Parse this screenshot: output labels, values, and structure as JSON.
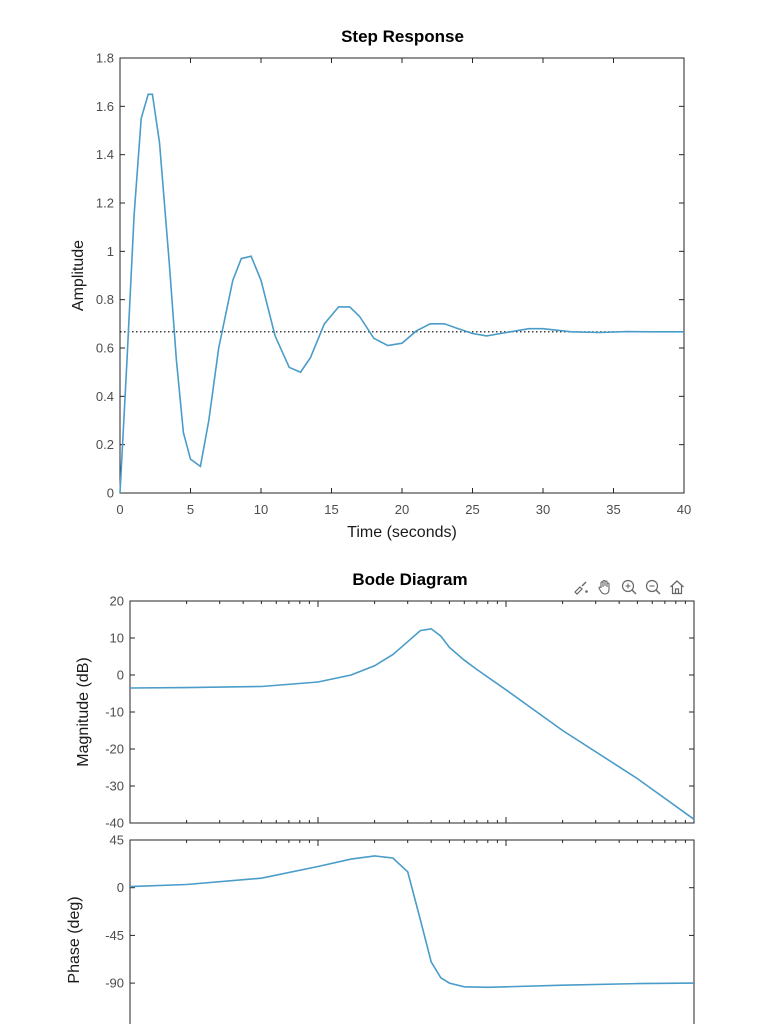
{
  "colors": {
    "line": "#4a9cc9",
    "axis": "#262626",
    "reference": "#000000"
  },
  "toolbar": {
    "icons": [
      "brush-icon",
      "pan-hand-icon",
      "zoom-in-icon",
      "zoom-out-icon",
      "home-icon"
    ]
  },
  "chart_data": [
    {
      "type": "line",
      "title": "Step Response",
      "xlabel": "Time (seconds)",
      "ylabel": "Amplitude",
      "xlim": [
        0,
        40
      ],
      "ylim": [
        0,
        1.8
      ],
      "xticks": [
        "0",
        "5",
        "10",
        "15",
        "20",
        "25",
        "30",
        "35",
        "40"
      ],
      "yticks": [
        "0",
        "0.2",
        "0.4",
        "0.6",
        "0.8",
        "1",
        "1.2",
        "1.4",
        "1.6",
        "1.8"
      ],
      "grid": false,
      "steady_state": 0.667,
      "series": [
        {
          "x": [
            0,
            0.5,
            1,
            1.5,
            2,
            2.3,
            2.8,
            3.5,
            4,
            4.5,
            5,
            5.7,
            6.3,
            7,
            8,
            8.6,
            9.3,
            10,
            11,
            12,
            12.8,
            13.5,
            14.5,
            15.5,
            16.3,
            17,
            18,
            19,
            20,
            21,
            22,
            23,
            24,
            25,
            26,
            27,
            28,
            29,
            30,
            32,
            34,
            36,
            38,
            40
          ],
          "values": [
            0,
            0.55,
            1.15,
            1.55,
            1.65,
            1.65,
            1.45,
            0.95,
            0.55,
            0.25,
            0.14,
            0.11,
            0.3,
            0.6,
            0.88,
            0.97,
            0.98,
            0.88,
            0.65,
            0.52,
            0.5,
            0.56,
            0.7,
            0.77,
            0.77,
            0.73,
            0.64,
            0.61,
            0.62,
            0.67,
            0.7,
            0.7,
            0.68,
            0.66,
            0.65,
            0.66,
            0.67,
            0.68,
            0.68,
            0.667,
            0.664,
            0.668,
            0.667,
            0.667
          ]
        }
      ]
    },
    {
      "type": "line",
      "title": "Bode Diagram",
      "ylabel": "Magnitude (dB)",
      "xscale": "log",
      "xlim": [
        0.01,
        10
      ],
      "ylim": [
        -40,
        20
      ],
      "yticks": [
        "20",
        "10",
        "0",
        "-10",
        "-20",
        "-30",
        "-40"
      ],
      "grid": false,
      "series": [
        {
          "x": [
            0.01,
            0.02,
            0.05,
            0.1,
            0.15,
            0.2,
            0.25,
            0.3,
            0.35,
            0.4,
            0.45,
            0.5,
            0.6,
            0.7,
            1,
            2,
            5,
            10
          ],
          "values": [
            -3.5,
            -3.4,
            -3.1,
            -1.9,
            0,
            2.5,
            5.5,
            9,
            12,
            12.5,
            10.5,
            7.5,
            4,
            1.5,
            -4,
            -15,
            -28,
            -39
          ]
        }
      ]
    },
    {
      "type": "line",
      "ylabel": "Phase (deg)",
      "xscale": "log",
      "xlim": [
        0.01,
        10
      ],
      "ylim": [
        -120,
        45
      ],
      "yticks": [
        "45",
        "0",
        "-45",
        "-90"
      ],
      "grid": false,
      "series": [
        {
          "x": [
            0.01,
            0.02,
            0.05,
            0.1,
            0.15,
            0.2,
            0.25,
            0.3,
            0.35,
            0.4,
            0.45,
            0.5,
            0.6,
            0.8,
            1,
            2,
            5,
            10
          ],
          "values": [
            1,
            3,
            9,
            20,
            27,
            30,
            28,
            15,
            -30,
            -70,
            -85,
            -90,
            -93.5,
            -94,
            -93.5,
            -92,
            -90.5,
            -90
          ]
        }
      ]
    }
  ]
}
